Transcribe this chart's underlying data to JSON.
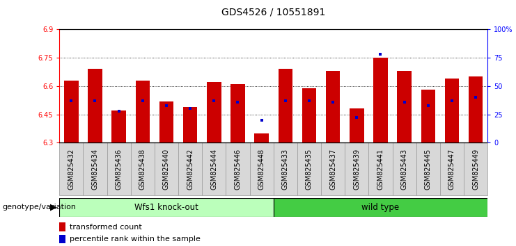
{
  "title": "GDS4526 / 10551891",
  "samples": [
    "GSM825432",
    "GSM825434",
    "GSM825436",
    "GSM825438",
    "GSM825440",
    "GSM825442",
    "GSM825444",
    "GSM825446",
    "GSM825448",
    "GSM825433",
    "GSM825435",
    "GSM825437",
    "GSM825439",
    "GSM825441",
    "GSM825443",
    "GSM825445",
    "GSM825447",
    "GSM825449"
  ],
  "transformed_counts": [
    6.63,
    6.69,
    6.47,
    6.63,
    6.52,
    6.49,
    6.62,
    6.61,
    6.35,
    6.69,
    6.59,
    6.68,
    6.48,
    6.75,
    6.68,
    6.58,
    6.64,
    6.65
  ],
  "percentile_ranks": [
    37,
    37,
    28,
    37,
    33,
    30,
    37,
    36,
    20,
    37,
    37,
    36,
    22,
    78,
    36,
    33,
    37,
    40
  ],
  "ymin": 6.3,
  "ymax": 6.9,
  "pmin": 0,
  "pmax": 100,
  "yticks": [
    6.3,
    6.45,
    6.6,
    6.75,
    6.9
  ],
  "ytick_labels": [
    "6.3",
    "6.45",
    "6.6",
    "6.75",
    "6.9"
  ],
  "pticks": [
    0,
    25,
    50,
    75,
    100
  ],
  "ptick_labels": [
    "0",
    "25",
    "50",
    "75",
    "100%"
  ],
  "bar_color": "#cc0000",
  "dot_color": "#0000cc",
  "group1_label": "Wfs1 knock-out",
  "group2_label": "wild type",
  "group1_color": "#bbffbb",
  "group2_color": "#44cc44",
  "group_label": "genotype/variation",
  "legend_bar": "transformed count",
  "legend_dot": "percentile rank within the sample",
  "n_knockout": 9,
  "n_wildtype": 9,
  "title_fontsize": 10,
  "tick_fontsize": 7,
  "label_fontsize": 8,
  "bar_width": 0.6
}
